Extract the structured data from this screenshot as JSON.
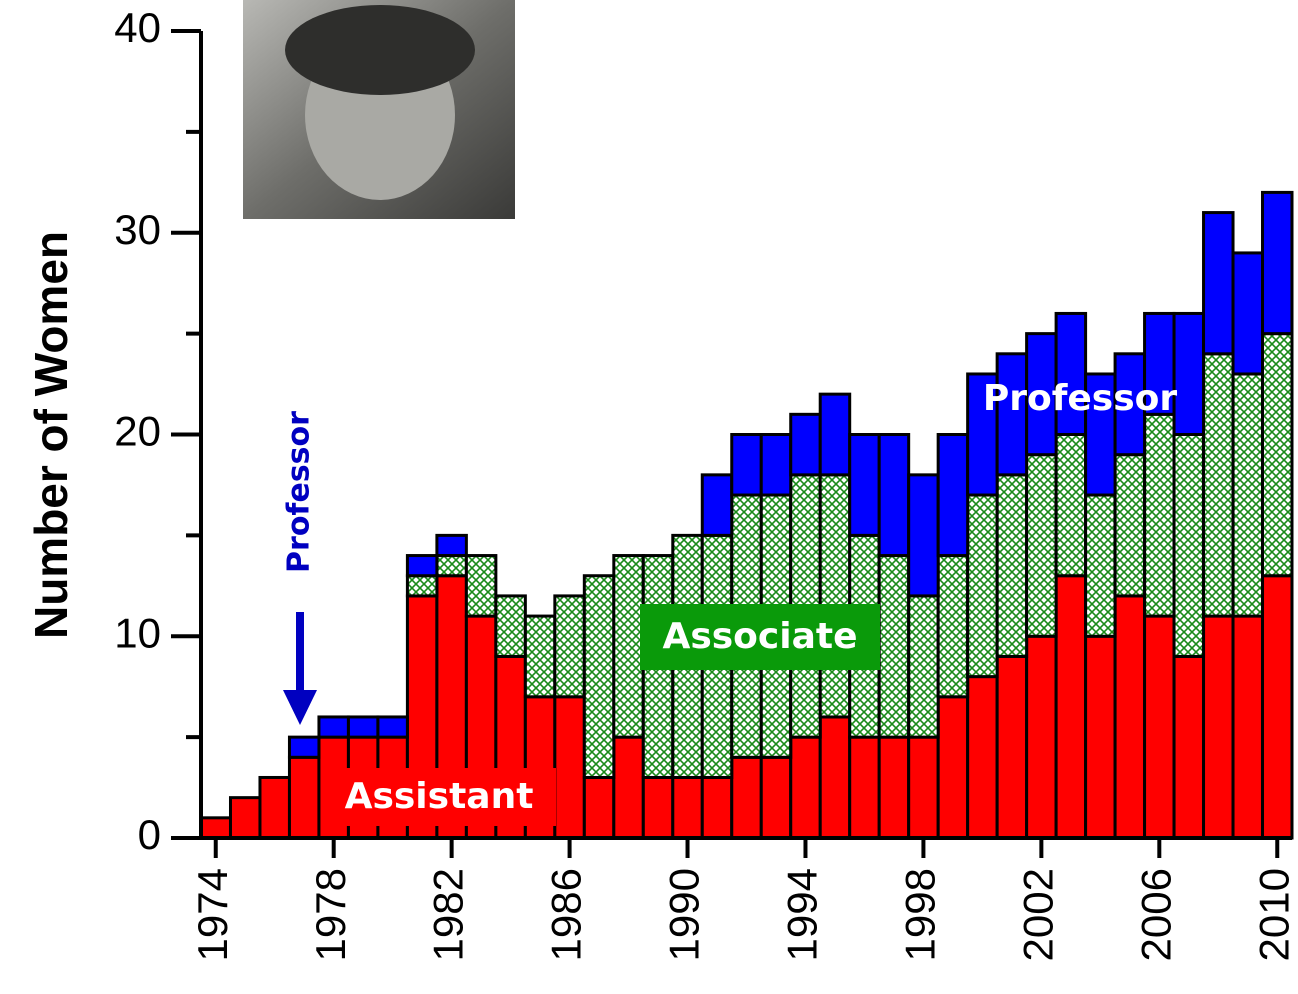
{
  "chart_data": {
    "type": "stacked-bar",
    "y_label": "Number of Women",
    "x": [
      1974,
      1975,
      1976,
      1977,
      1978,
      1979,
      1980,
      1981,
      1982,
      1983,
      1984,
      1985,
      1986,
      1987,
      1988,
      1989,
      1990,
      1991,
      1992,
      1993,
      1994,
      1995,
      1996,
      1997,
      1998,
      1999,
      2000,
      2001,
      2002,
      2003,
      2004,
      2005,
      2006,
      2007,
      2008,
      2009,
      2010
    ],
    "series": [
      {
        "name": "Assistant",
        "color": "#ff0000",
        "values": [
          1,
          2,
          3,
          4,
          5,
          5,
          5,
          12,
          13,
          11,
          9,
          7,
          7,
          3,
          5,
          3,
          3,
          3,
          4,
          4,
          5,
          6,
          5,
          5,
          5,
          7,
          8,
          9,
          10,
          13,
          10,
          12,
          11,
          9,
          11,
          11,
          13
        ]
      },
      {
        "name": "Associate",
        "color": "#008000",
        "values": [
          0,
          0,
          0,
          0,
          0,
          0,
          0,
          1,
          1,
          3,
          3,
          4,
          5,
          10,
          9,
          11,
          12,
          12,
          13,
          13,
          13,
          12,
          10,
          9,
          7,
          7,
          9,
          9,
          9,
          7,
          7,
          7,
          10,
          11,
          13,
          12,
          12
        ]
      },
      {
        "name": "Professor",
        "color": "#0000ff",
        "values": [
          0,
          0,
          0,
          1,
          1,
          1,
          1,
          1,
          1,
          0,
          0,
          0,
          0,
          0,
          0,
          0,
          0,
          3,
          3,
          3,
          3,
          4,
          5,
          6,
          6,
          6,
          6,
          6,
          6,
          6,
          6,
          5,
          5,
          6,
          7,
          6,
          7
        ]
      }
    ],
    "xlim": [
      1973.5,
      2010.5
    ],
    "xticks": [
      1974,
      1978,
      1982,
      1986,
      1990,
      1994,
      1998,
      2002,
      2006,
      2010
    ],
    "ylim": [
      0,
      40
    ],
    "yticks": [
      0,
      10,
      20,
      30,
      40
    ],
    "yminorticks": [
      5,
      15,
      25,
      35
    ],
    "annotations": [
      "Professor",
      "Assistant",
      "Associate",
      "Professor"
    ]
  }
}
